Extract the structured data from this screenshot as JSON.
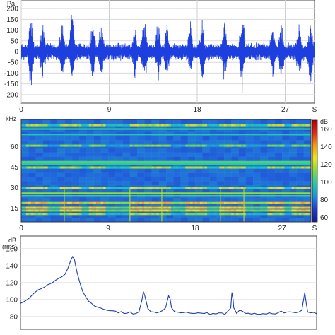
{
  "chart_data": [
    {
      "type": "line",
      "panel": "waveform",
      "y_unit": "Pa",
      "ylim": [
        -240,
        240
      ],
      "y_ticks": [
        "200",
        "150",
        "100",
        "50",
        "0",
        "-50",
        "-100",
        "-150",
        "-200"
      ],
      "y_tick_values": [
        200,
        150,
        100,
        50,
        0,
        -50,
        -100,
        -150,
        -200
      ],
      "xlim": [
        0,
        30
      ],
      "x_ticks": [
        "0",
        "9",
        "18",
        "27"
      ],
      "x_tick_values": [
        0,
        9,
        18,
        27
      ],
      "x_unit": "S",
      "grid": true,
      "line_color": "#1e3fe0",
      "baseline_amplitude": 35,
      "bursts": [
        {
          "t": 1.0,
          "amplitude": 210
        },
        {
          "t": 2.2,
          "amplitude": 155
        },
        {
          "t": 4.2,
          "amplitude": 160
        },
        {
          "t": 5.2,
          "amplitude": 200
        },
        {
          "t": 7.3,
          "amplitude": 180
        },
        {
          "t": 8.2,
          "amplitude": 170
        },
        {
          "t": 11.6,
          "amplitude": 150
        },
        {
          "t": 12.6,
          "amplitude": 190
        },
        {
          "t": 14.0,
          "amplitude": 170
        },
        {
          "t": 14.9,
          "amplitude": 160
        },
        {
          "t": 17.3,
          "amplitude": 160
        },
        {
          "t": 18.5,
          "amplitude": 170
        },
        {
          "t": 20.8,
          "amplitude": 160
        },
        {
          "t": 22.6,
          "amplitude": 210
        },
        {
          "t": 25.7,
          "amplitude": 160
        },
        {
          "t": 26.6,
          "amplitude": 170
        },
        {
          "t": 28.4,
          "amplitude": 170
        },
        {
          "t": 29.6,
          "amplitude": 200
        }
      ]
    },
    {
      "type": "heatmap",
      "panel": "spectrogram",
      "y_unit": "kHz",
      "ylim": [
        5,
        80
      ],
      "y_ticks": [
        "60",
        "45",
        "30",
        "15"
      ],
      "y_tick_values": [
        60,
        45,
        30,
        15
      ],
      "xlim": [
        0,
        30
      ],
      "x_ticks": [
        "0",
        "9",
        "18",
        "27"
      ],
      "x_tick_values": [
        0,
        9,
        18,
        27
      ],
      "x_unit": "S",
      "colorbar": {
        "unit": "dB",
        "ticks": [
          "160",
          "140",
          "120",
          "100",
          "80",
          "60"
        ],
        "tick_values": [
          160,
          140,
          120,
          100,
          80,
          60
        ],
        "range": [
          55,
          170
        ],
        "colors": [
          "#1a1a8c",
          "#1f3bd0",
          "#1e90e0",
          "#21c9a8",
          "#7ddc3a",
          "#f2e21a",
          "#f59a12",
          "#e32a10",
          "#b00000"
        ]
      },
      "background_level": 82,
      "steady_bands": [
        {
          "f": 73,
          "level": 100
        },
        {
          "f": 69,
          "level": 98
        },
        {
          "f": 49,
          "level": 105
        },
        {
          "f": 47.5,
          "level": 100
        },
        {
          "f": 26,
          "level": 115
        },
        {
          "f": 24,
          "level": 105
        }
      ],
      "harmonic_bands": [
        {
          "f": 76,
          "level": 118
        },
        {
          "f": 61,
          "level": 110
        },
        {
          "f": 45,
          "level": 118
        },
        {
          "f": 30,
          "level": 120
        },
        {
          "f": 19,
          "level": 135
        },
        {
          "f": 15.5,
          "level": 130
        },
        {
          "f": 13.5,
          "level": 130
        },
        {
          "f": 11,
          "level": 115
        }
      ],
      "active_intervals": [
        [
          0.5,
          2.6
        ],
        [
          3.9,
          6.0
        ],
        [
          6.9,
          8.6
        ],
        [
          11.2,
          15.4
        ],
        [
          16.9,
          19.0
        ],
        [
          20.4,
          23.2
        ],
        [
          25.4,
          27.0
        ],
        [
          28.0,
          30.0
        ]
      ],
      "transient_times": [
        4.4,
        11.2,
        14.5,
        20.6,
        23.0
      ]
    },
    {
      "type": "line",
      "panel": "spectrum",
      "y_unit": "dB",
      "y_unit_sub": "(rms)",
      "ylim": [
        65,
        175
      ],
      "y_ticks": [
        "160",
        "140",
        "120",
        "100",
        "80"
      ],
      "y_tick_values": [
        160,
        140,
        120,
        100,
        80
      ],
      "grid": true,
      "line_color": "#1f3fb0",
      "x_range": [
        0,
        100
      ],
      "points": [
        [
          0,
          95
        ],
        [
          1,
          97
        ],
        [
          2,
          99
        ],
        [
          3,
          102
        ],
        [
          4,
          106
        ],
        [
          5,
          109
        ],
        [
          6,
          111
        ],
        [
          7,
          113
        ],
        [
          8,
          115
        ],
        [
          9,
          117
        ],
        [
          10,
          119
        ],
        [
          11,
          121
        ],
        [
          12,
          123
        ],
        [
          13,
          125
        ],
        [
          14,
          127
        ],
        [
          15,
          130
        ],
        [
          16,
          137
        ],
        [
          17,
          146
        ],
        [
          17.6,
          151
        ],
        [
          18.2,
          147
        ],
        [
          19,
          134
        ],
        [
          20,
          120
        ],
        [
          21,
          110
        ],
        [
          22,
          103
        ],
        [
          23,
          98
        ],
        [
          24,
          95
        ],
        [
          25,
          93
        ],
        [
          26,
          91
        ],
        [
          27,
          90
        ],
        [
          28,
          89
        ],
        [
          29,
          88
        ],
        [
          30,
          87
        ],
        [
          31,
          87
        ],
        [
          32,
          86
        ],
        [
          33,
          85
        ],
        [
          34,
          86
        ],
        [
          35,
          84
        ],
        [
          36,
          84
        ],
        [
          37,
          85
        ],
        [
          38,
          83
        ],
        [
          39,
          84
        ],
        [
          40,
          86
        ],
        [
          41,
          99
        ],
        [
          41.5,
          109
        ],
        [
          42,
          104
        ],
        [
          43,
          90
        ],
        [
          44,
          86
        ],
        [
          45,
          86
        ],
        [
          46,
          85
        ],
        [
          47,
          85
        ],
        [
          48,
          87
        ],
        [
          49,
          90
        ],
        [
          50,
          105
        ],
        [
          50.5,
          101
        ],
        [
          51,
          91
        ],
        [
          52,
          86
        ],
        [
          53,
          85
        ],
        [
          54,
          84
        ],
        [
          55,
          85
        ],
        [
          56,
          85
        ],
        [
          57,
          84
        ],
        [
          58,
          84
        ],
        [
          59,
          84
        ],
        [
          60,
          85
        ],
        [
          61,
          84
        ],
        [
          62,
          84
        ],
        [
          63,
          85
        ],
        [
          64,
          83
        ],
        [
          65,
          84
        ],
        [
          66,
          83
        ],
        [
          67,
          84
        ],
        [
          68,
          84
        ],
        [
          69,
          83
        ],
        [
          70,
          86
        ],
        [
          71,
          90
        ],
        [
          71.4,
          109
        ],
        [
          71.8,
          100
        ],
        [
          72,
          90
        ],
        [
          73,
          84
        ],
        [
          74,
          88
        ],
        [
          75,
          86
        ],
        [
          76,
          84
        ],
        [
          77,
          84
        ],
        [
          78,
          83
        ],
        [
          79,
          84
        ],
        [
          80,
          83
        ],
        [
          81,
          83
        ],
        [
          82,
          83
        ],
        [
          83,
          83
        ],
        [
          84,
          84
        ],
        [
          85,
          84
        ],
        [
          86,
          83
        ],
        [
          87,
          85
        ],
        [
          88,
          86
        ],
        [
          89,
          84
        ],
        [
          90,
          86
        ],
        [
          91,
          86
        ],
        [
          92,
          85
        ],
        [
          93,
          85
        ],
        [
          94,
          86
        ],
        [
          95,
          87
        ],
        [
          96,
          108
        ],
        [
          96.5,
          96
        ],
        [
          97,
          85
        ],
        [
          98,
          84
        ],
        [
          99,
          85
        ],
        [
          100,
          84
        ]
      ]
    }
  ]
}
